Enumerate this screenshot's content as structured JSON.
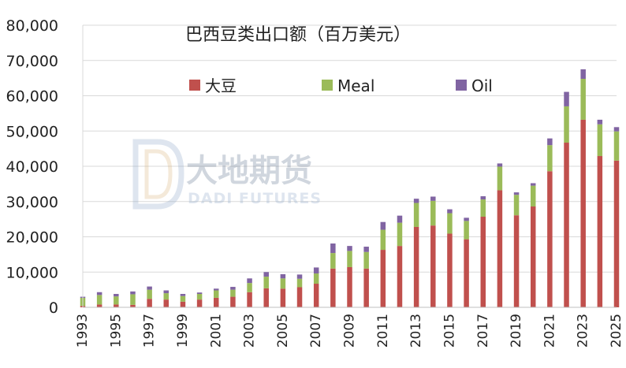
{
  "chart_data": {
    "type": "bar",
    "stacked": true,
    "title": "巴西豆类出口额（百万美元）",
    "xlabel": "",
    "ylabel": "",
    "ylim": [
      0,
      80000
    ],
    "yticks": [
      0,
      10000,
      20000,
      30000,
      40000,
      50000,
      60000,
      70000,
      80000
    ],
    "ytick_labels": [
      "0",
      "10,000",
      "20,000",
      "30,000",
      "40,000",
      "50,000",
      "60,000",
      "70,000",
      "80,000"
    ],
    "grid": "horizontal",
    "legend_position": "top-center",
    "categories": [
      "1993",
      "1994",
      "1995",
      "1996",
      "1997",
      "1998",
      "1999",
      "2000",
      "2001",
      "2002",
      "2003",
      "2004",
      "2005",
      "2006",
      "2007",
      "2008",
      "2009",
      "2010",
      "2011",
      "2012",
      "2013",
      "2014",
      "2015",
      "2016",
      "2017",
      "2018",
      "2019",
      "2020",
      "2021",
      "2022",
      "2023",
      "2024",
      "2025"
    ],
    "xtick_labels": [
      "1993",
      "1995",
      "1997",
      "1999",
      "2001",
      "2003",
      "2005",
      "2007",
      "2009",
      "2011",
      "2013",
      "2015",
      "2017",
      "2019",
      "2021",
      "2023",
      "2025"
    ],
    "series": [
      {
        "name": "大豆",
        "color": "#c0504d",
        "values": [
          400,
          800,
          800,
          700,
          2400,
          2200,
          1600,
          2200,
          2700,
          3000,
          4300,
          5400,
          5300,
          5700,
          6700,
          11000,
          11400,
          11000,
          16300,
          17400,
          22800,
          23200,
          20900,
          19300,
          25700,
          33200,
          26100,
          28600,
          38600,
          46700,
          53200,
          42900,
          41600
        ]
      },
      {
        "name": "Meal",
        "color": "#9bbb59",
        "values": [
          2300,
          2700,
          2300,
          3000,
          2600,
          1800,
          1600,
          1600,
          2100,
          2000,
          2600,
          3300,
          2900,
          2400,
          2900,
          4400,
          4600,
          4700,
          5700,
          6600,
          6800,
          7000,
          5800,
          5200,
          4900,
          6700,
          5800,
          5900,
          7400,
          10300,
          11600,
          9000,
          8300
        ]
      },
      {
        "name": "Oil",
        "color": "#8064a2",
        "values": [
          300,
          800,
          700,
          800,
          900,
          800,
          600,
          400,
          500,
          800,
          1300,
          1300,
          1200,
          1200,
          1700,
          2700,
          1400,
          1500,
          2200,
          2000,
          1200,
          1200,
          1100,
          900,
          900,
          900,
          700,
          700,
          1900,
          4100,
          2700,
          1300,
          1200
        ]
      }
    ]
  },
  "watermark": {
    "brand_cn": "大地期货",
    "brand_en": "DADI FUTURES"
  }
}
